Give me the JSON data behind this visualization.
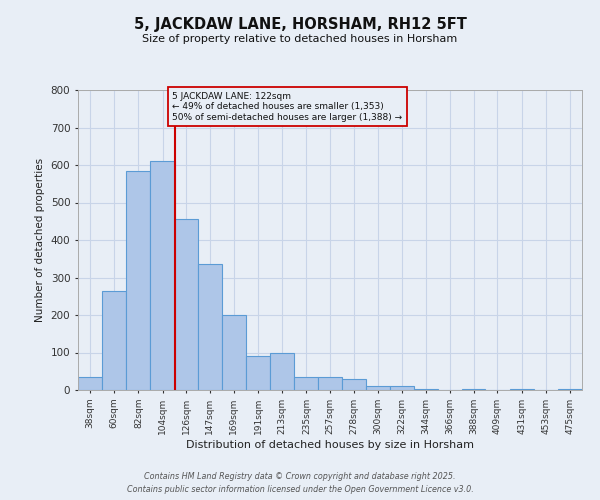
{
  "title": "5, JACKDAW LANE, HORSHAM, RH12 5FT",
  "subtitle": "Size of property relative to detached houses in Horsham",
  "xlabel": "Distribution of detached houses by size in Horsham",
  "ylabel": "Number of detached properties",
  "bar_left_edges": [
    38,
    60,
    82,
    104,
    126,
    147,
    169,
    191,
    213,
    235,
    257,
    278,
    300,
    322,
    344,
    366,
    388,
    409,
    431,
    453,
    475
  ],
  "bar_widths": [
    22,
    22,
    22,
    22,
    21,
    22,
    22,
    22,
    22,
    22,
    21,
    22,
    22,
    22,
    22,
    22,
    21,
    22,
    22,
    22,
    22
  ],
  "bar_heights": [
    35,
    265,
    585,
    610,
    455,
    335,
    200,
    92,
    100,
    35,
    35,
    30,
    12,
    10,
    3,
    0,
    2,
    0,
    2,
    0,
    2
  ],
  "tick_labels": [
    "38sqm",
    "60sqm",
    "82sqm",
    "104sqm",
    "126sqm",
    "147sqm",
    "169sqm",
    "191sqm",
    "213sqm",
    "235sqm",
    "257sqm",
    "278sqm",
    "300sqm",
    "322sqm",
    "344sqm",
    "366sqm",
    "388sqm",
    "409sqm",
    "431sqm",
    "453sqm",
    "475sqm"
  ],
  "bar_color": "#aec6e8",
  "bar_edge_color": "#5b9bd5",
  "bar_edge_width": 0.8,
  "grid_color": "#c8d4e8",
  "bg_color": "#e8eef6",
  "red_line_x": 126,
  "red_line_color": "#cc0000",
  "annotation_line1": "5 JACKDAW LANE: 122sqm",
  "annotation_line2": "← 49% of detached houses are smaller (1,353)",
  "annotation_line3": "50% of semi-detached houses are larger (1,388) →",
  "ylim": [
    0,
    800
  ],
  "yticks": [
    0,
    100,
    200,
    300,
    400,
    500,
    600,
    700,
    800
  ],
  "footer1": "Contains HM Land Registry data © Crown copyright and database right 2025.",
  "footer2": "Contains public sector information licensed under the Open Government Licence v3.0."
}
